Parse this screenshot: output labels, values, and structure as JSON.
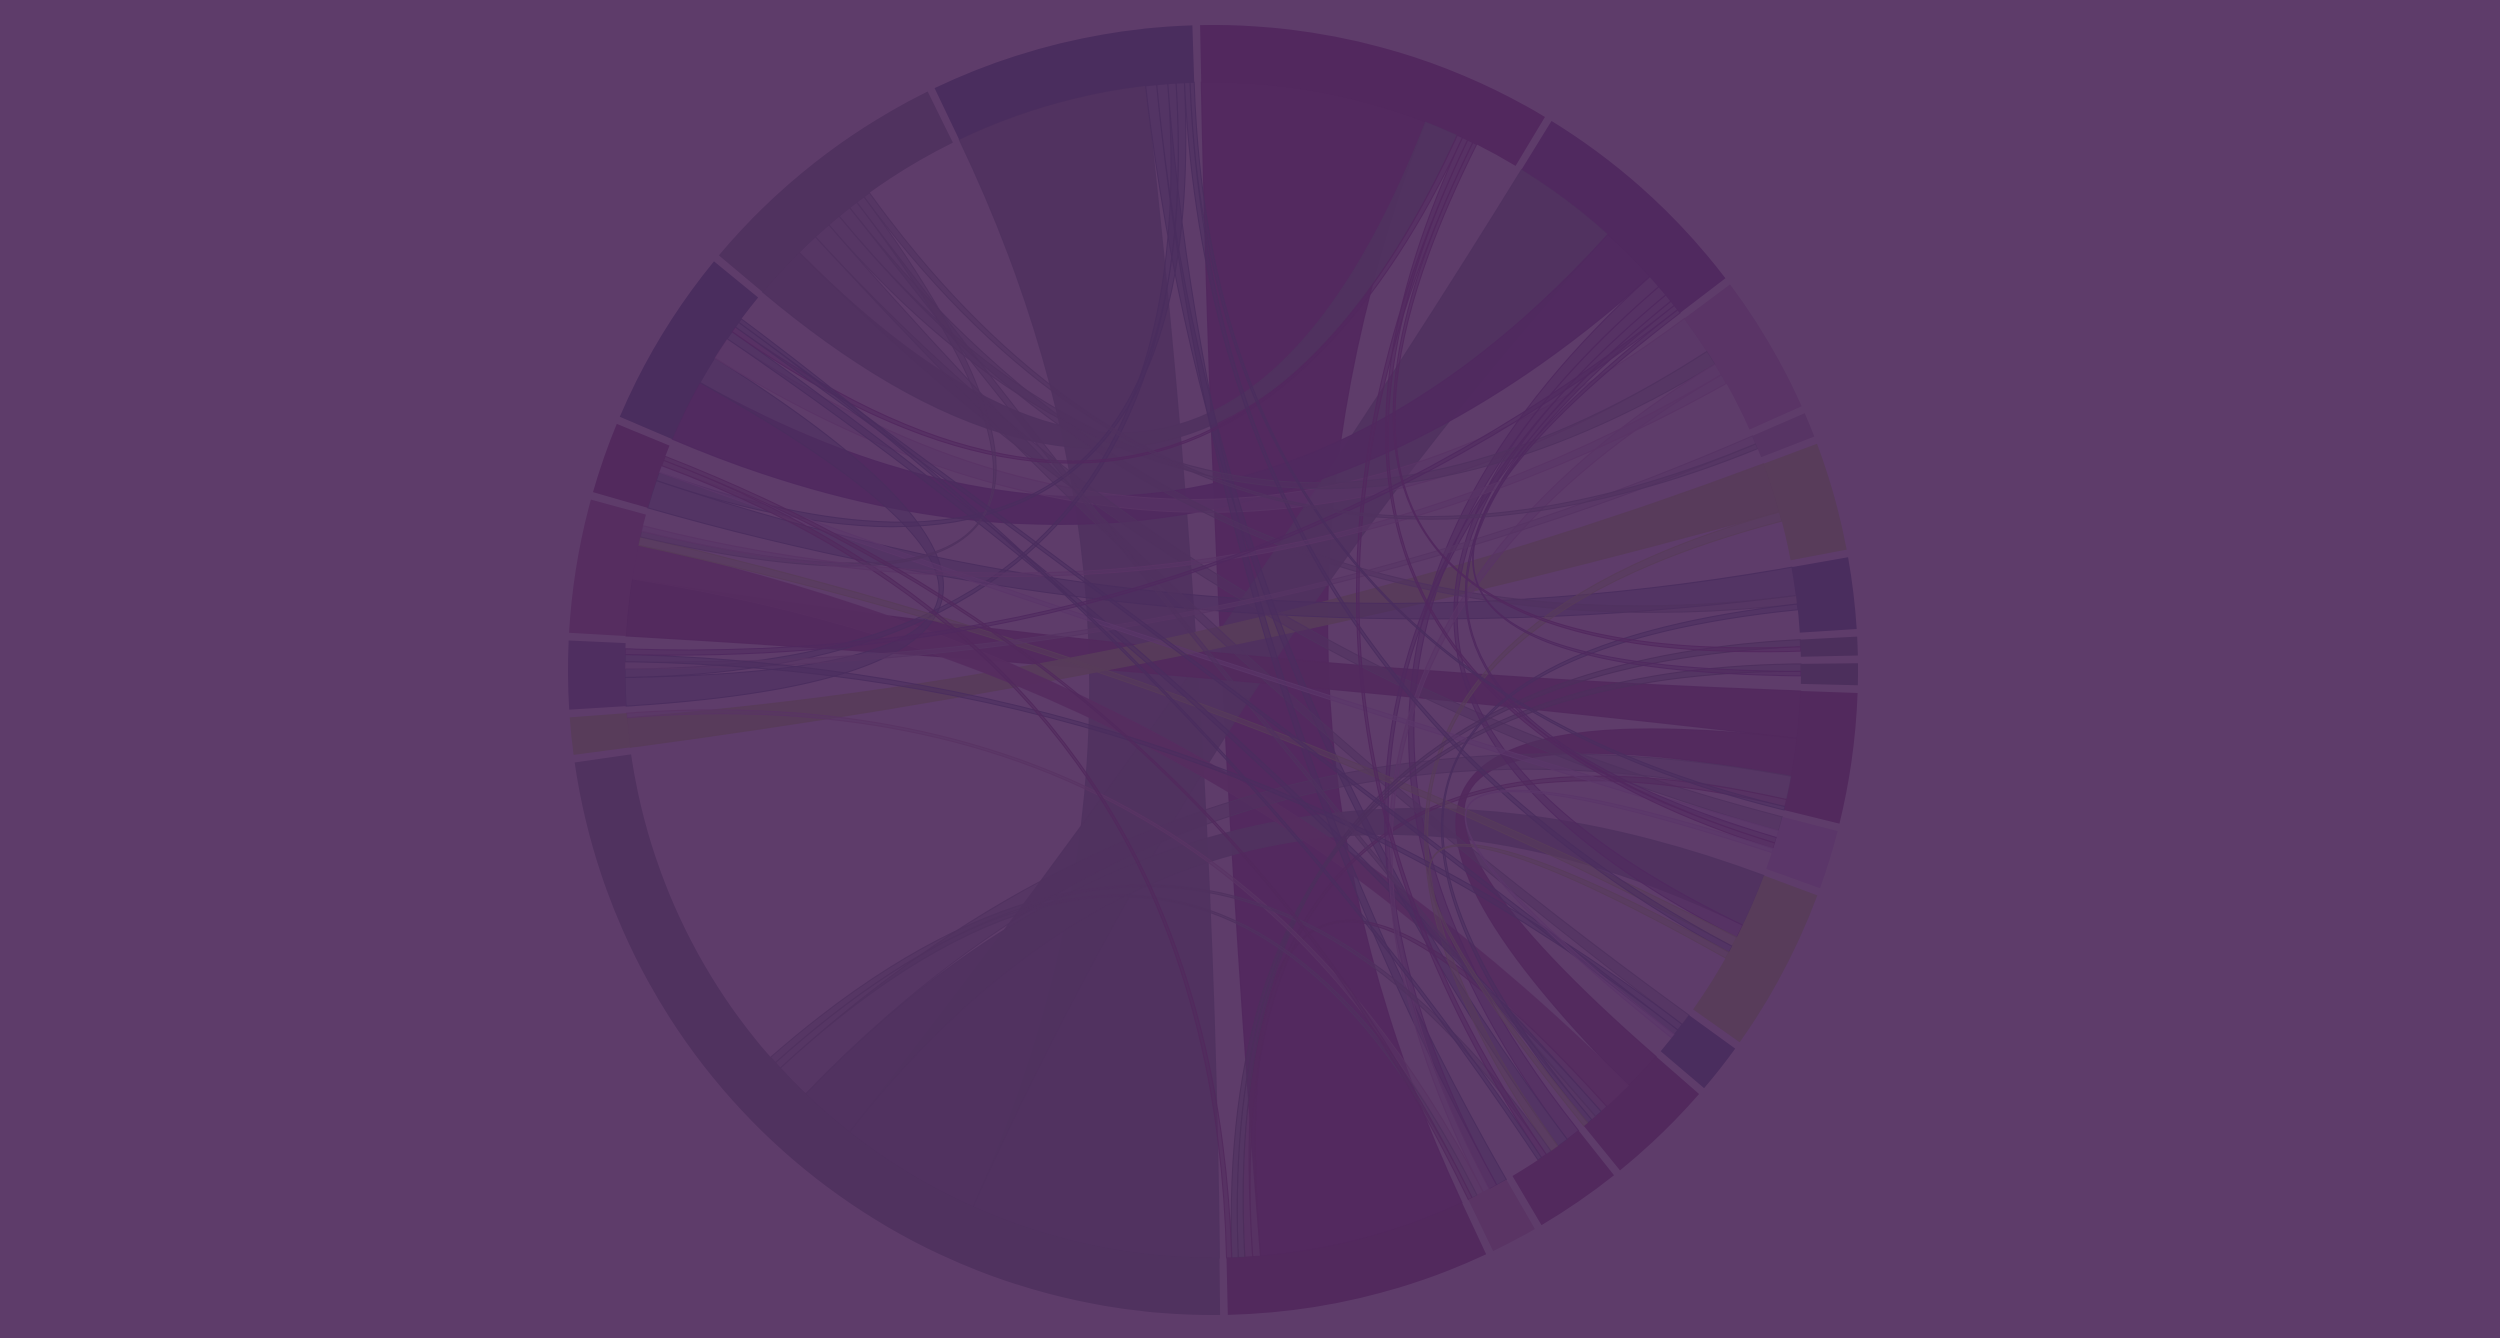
{
  "background_color": "#5e3c6a",
  "diagram": {
    "type": "chord",
    "labels_visible": false,
    "groups": [
      {
        "id": "g0",
        "color": "#52285e",
        "weight": 11.5
      },
      {
        "id": "g1",
        "color": "#50295f",
        "weight": 7.5
      },
      {
        "id": "g2",
        "color": "#5a3466",
        "weight": 4.5
      },
      {
        "id": "g3",
        "color": "#573464",
        "weight": 0.8
      },
      {
        "id": "g4",
        "color": "#583c5a",
        "weight": 3.5
      },
      {
        "id": "g5",
        "color": "#4a2d5e",
        "weight": 2.3
      },
      {
        "id": "g6",
        "color": "#4c2f5c",
        "weight": 0.6
      },
      {
        "id": "g7",
        "color": "#4c2f5c",
        "weight": 0.7
      },
      {
        "id": "g8",
        "color": "#52295d",
        "weight": 4.2
      },
      {
        "id": "g9",
        "color": "#5b3669",
        "weight": 1.9
      },
      {
        "id": "g10",
        "color": "#583c5a",
        "weight": 5.3
      },
      {
        "id": "g11",
        "color": "#4a2d5e",
        "weight": 1.6
      },
      {
        "id": "g12",
        "color": "#52295d",
        "weight": 3.5
      },
      {
        "id": "g13",
        "color": "#52295d",
        "weight": 2.8
      },
      {
        "id": "g14",
        "color": "#5a3464",
        "weight": 1.5
      },
      {
        "id": "g15",
        "color": "#52295d",
        "weight": 8.5
      },
      {
        "id": "g16",
        "color": "#50325f",
        "weight": 29.5
      },
      {
        "id": "g17",
        "color": "#583c5a",
        "weight": 1.2
      },
      {
        "id": "g18",
        "color": "#4f2e60",
        "weight": 2.2
      },
      {
        "id": "g19",
        "color": "#562d60",
        "weight": 4.3
      },
      {
        "id": "g20",
        "color": "#52295d",
        "weight": 2.3
      },
      {
        "id": "g21",
        "color": "#4a2d5e",
        "weight": 5.8
      },
      {
        "id": "g22",
        "color": "#50325f",
        "weight": 8.5
      },
      {
        "id": "g23",
        "color": "#4a2d5e",
        "weight": 8.5
      }
    ],
    "ribbons": [
      {
        "source": "g16",
        "target": "g23",
        "value": 7.0
      },
      {
        "source": "g0",
        "target": "g15",
        "value": 8.0
      },
      {
        "source": "g16",
        "target": "g1",
        "value": 4.0
      },
      {
        "source": "g22",
        "target": "g0",
        "value": 1.2
      },
      {
        "source": "g1",
        "target": "g21",
        "value": 2.2
      },
      {
        "source": "g4",
        "target": "g17",
        "value": 1.6
      },
      {
        "source": "g16",
        "target": "g10",
        "value": 1.6
      },
      {
        "source": "g8",
        "target": "g12",
        "value": 1.6
      },
      {
        "source": "g8",
        "target": "g19",
        "value": 2.0
      },
      {
        "source": "g19",
        "target": "g12",
        "value": 1.2
      },
      {
        "source": "g5",
        "target": "g20",
        "value": 1.0
      },
      {
        "source": "g21",
        "target": "g18",
        "value": 1.0
      },
      {
        "source": "g16",
        "target": "g8",
        "value": 1.0
      },
      {
        "source": "g2",
        "target": "g21",
        "value": 0.8
      },
      {
        "source": "g22",
        "target": "g9",
        "value": 0.5
      },
      {
        "source": "g1",
        "target": "g13",
        "value": 0.5
      },
      {
        "source": "g23",
        "target": "g13",
        "value": 0.4
      },
      {
        "source": "g22",
        "target": "g11",
        "value": 0.4
      },
      {
        "source": "g23",
        "target": "g14",
        "value": 0.4
      },
      {
        "source": "g1",
        "target": "g10",
        "value": 0.4
      },
      {
        "source": "g15",
        "target": "g12",
        "value": 0.3
      },
      {
        "source": "g15",
        "target": "g8",
        "value": 0.3
      },
      {
        "source": "g22",
        "target": "g2",
        "value": 0.3
      },
      {
        "source": "g22",
        "target": "g5",
        "value": 0.3
      },
      {
        "source": "g23",
        "target": "g18",
        "value": 0.3
      },
      {
        "source": "g23",
        "target": "g20",
        "value": 0.3
      },
      {
        "source": "g1",
        "target": "g14",
        "value": 0.3
      },
      {
        "source": "g4",
        "target": "g13",
        "value": 0.3
      },
      {
        "source": "g10",
        "target": "g19",
        "value": 0.3
      },
      {
        "source": "g21",
        "target": "g12",
        "value": 0.3
      },
      {
        "source": "g2",
        "target": "g14",
        "value": 0.25
      },
      {
        "source": "g3",
        "target": "g18",
        "value": 0.25
      },
      {
        "source": "g6",
        "target": "g15",
        "value": 0.25
      },
      {
        "source": "g7",
        "target": "g15",
        "value": 0.25
      },
      {
        "source": "g9",
        "target": "g20",
        "value": 0.25
      },
      {
        "source": "g11",
        "target": "g18",
        "value": 0.25
      },
      {
        "source": "g14",
        "target": "g17",
        "value": 0.25
      },
      {
        "source": "g0",
        "target": "g21",
        "value": 0.2
      },
      {
        "source": "g16",
        "target": "g14",
        "value": 0.2
      },
      {
        "source": "g16",
        "target": "g13",
        "value": 0.2
      },
      {
        "source": "g23",
        "target": "g10",
        "value": 0.2
      },
      {
        "source": "g22",
        "target": "g12",
        "value": 0.2
      },
      {
        "source": "g1",
        "target": "g9",
        "value": 0.2
      },
      {
        "source": "g0",
        "target": "g9",
        "value": 0.2
      },
      {
        "source": "g5",
        "target": "g12",
        "value": 0.2
      },
      {
        "source": "g15",
        "target": "g20",
        "value": 0.2
      },
      {
        "source": "g0",
        "target": "g13",
        "value": 0.2
      },
      {
        "source": "g22",
        "target": "g19",
        "value": 0.2
      },
      {
        "source": "g2",
        "target": "g19",
        "value": 0.2
      },
      {
        "source": "g11",
        "target": "g21",
        "value": 0.2
      },
      {
        "source": "g1",
        "target": "g18",
        "value": 0.2
      },
      {
        "source": "g10",
        "target": "g12",
        "value": 0.2
      },
      {
        "source": "g23",
        "target": "g8",
        "value": 0.15
      },
      {
        "source": "g22",
        "target": "g3",
        "value": 0.15
      },
      {
        "source": "g0",
        "target": "g6",
        "value": 0.15
      },
      {
        "source": "g1",
        "target": "g7",
        "value": 0.15
      },
      {
        "source": "g21",
        "target": "g13",
        "value": 0.15
      },
      {
        "source": "g20",
        "target": "g14",
        "value": 0.15
      },
      {
        "source": "g9",
        "target": "g11",
        "value": 0.15
      }
    ]
  }
}
